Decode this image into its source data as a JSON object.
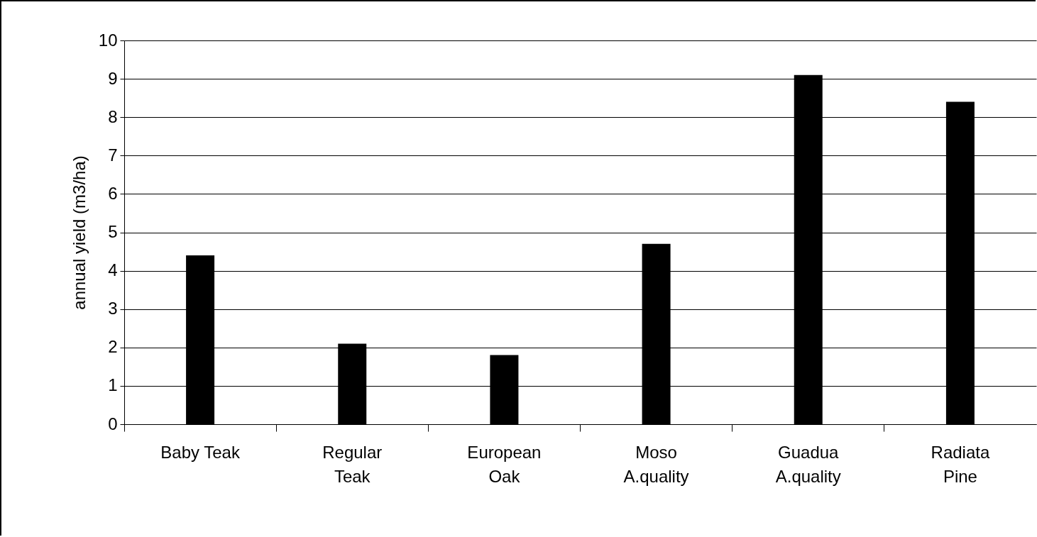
{
  "chart_data": {
    "type": "bar",
    "ylabel": "annual yield (m3/ha)",
    "categories": [
      "Baby Teak",
      "Regular Teak",
      "European Oak",
      "Moso A.quality",
      "Guadua A.quality",
      "Radiata Pine"
    ],
    "values": [
      4.4,
      2.1,
      1.8,
      4.7,
      9.1,
      8.4
    ],
    "color": "#000000",
    "ylim": [
      0,
      10
    ],
    "yticks": [
      0,
      1,
      2,
      3,
      4,
      5,
      6,
      7,
      8,
      9,
      10
    ],
    "grid": "y"
  }
}
